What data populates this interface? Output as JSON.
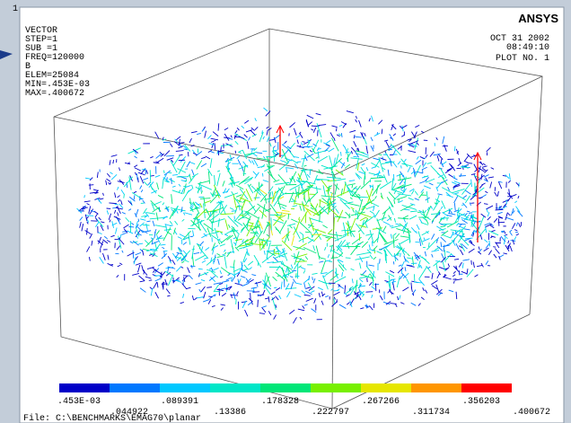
{
  "window_number": "1",
  "info": [
    "VECTOR",
    "STEP=1",
    "SUB =1",
    "FREQ=120000",
    "B",
    "ELEM=25084",
    "MIN=.453E-03",
    "MAX=.400672"
  ],
  "date": "OCT 31 2002",
  "time": "08:49:10",
  "plot_no": "PLOT NO.  1",
  "logo": "ANSYS",
  "legend": {
    "colors": [
      "#0000c8",
      "#0078ff",
      "#00c8ff",
      "#00e6c8",
      "#00e678",
      "#78f000",
      "#e6e600",
      "#ff9600",
      "#ff0000"
    ],
    "labels": [
      ".453E-03",
      ".044922",
      ".089391",
      ".13386",
      ".178328",
      ".222797",
      ".267266",
      ".311734",
      ".356203",
      ".400672"
    ]
  },
  "file": "File: C:\\BENCHMARKS\\EMAG70\\planar"
}
